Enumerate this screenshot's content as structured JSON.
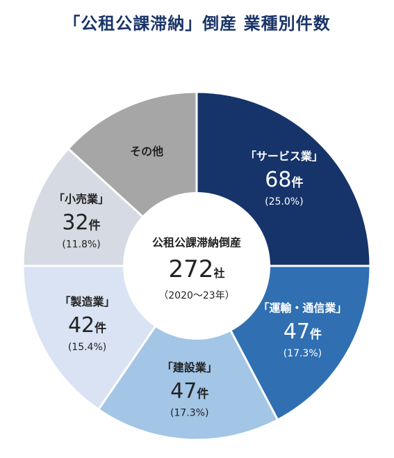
{
  "chart_data": {
    "type": "pie",
    "title": "「公租公課滞納」倒産 業種別件数",
    "center_label": {
      "line1": "公租公課滞納倒産",
      "value": "272",
      "unit": "社",
      "period": "（2020～23年）"
    },
    "count_unit": "件",
    "slices": [
      {
        "label": "「サービス業」",
        "value": 68,
        "percent": "(25.0%)",
        "color": "#16346a",
        "text_color": "#ffffff"
      },
      {
        "label": "「運輸・通信業」",
        "value": 47,
        "percent": "(17.3%)",
        "color": "#2f6fb2",
        "text_color": "#ffffff"
      },
      {
        "label": "「建設業」",
        "value": 47,
        "percent": "(17.3%)",
        "color": "#a3c5e6",
        "text_color": "#222222"
      },
      {
        "label": "「製造業」",
        "value": 42,
        "percent": "(15.4%)",
        "color": "#d9e3f3",
        "text_color": "#222222"
      },
      {
        "label": "「小売業」",
        "value": 32,
        "percent": "(11.8%)",
        "color": "#d6dae2",
        "text_color": "#222222"
      },
      {
        "label": "その他",
        "value": 36,
        "percent": "",
        "color": "#a6a6a6",
        "text_color": "#222222",
        "hide_value": true
      }
    ]
  }
}
